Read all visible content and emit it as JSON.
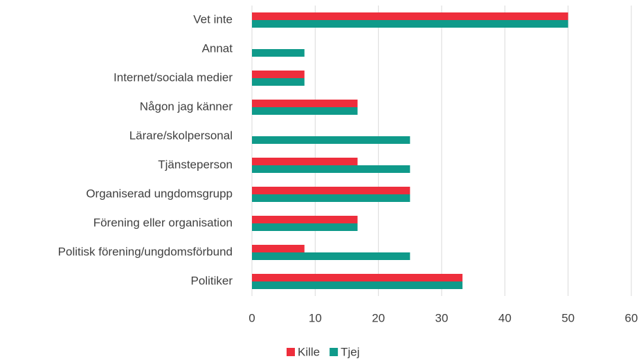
{
  "chart_data": {
    "type": "bar",
    "orientation": "horizontal",
    "categories": [
      "Vet inte",
      "Annat",
      "Internet/sociala medier",
      "Någon jag känner",
      "Lärare/skolpersonal",
      "Tjänsteperson",
      "Organiserad ungdomsgrupp",
      "Förening eller organisation",
      "Politisk förening/ungdomsförbund",
      "Politiker"
    ],
    "series": [
      {
        "name": "Kille",
        "color": "#ee2e3c",
        "values": [
          50,
          0,
          8.3,
          16.7,
          0,
          16.7,
          25,
          16.7,
          8.3,
          33.3
        ]
      },
      {
        "name": "Tjej",
        "color": "#0f9a8a",
        "values": [
          50,
          8.3,
          8.3,
          16.7,
          25,
          25,
          25,
          16.7,
          25,
          33.3
        ]
      }
    ],
    "xlim": [
      0,
      60
    ],
    "xticks": [
      0,
      10,
      20,
      30,
      40,
      50,
      60
    ],
    "grid": true,
    "legend": "bottom"
  }
}
